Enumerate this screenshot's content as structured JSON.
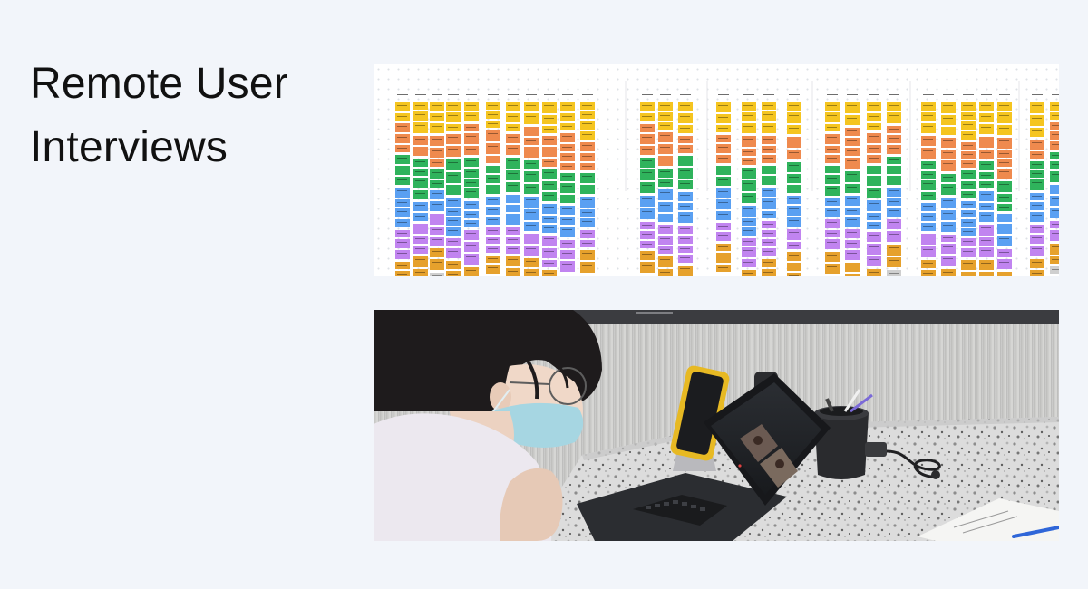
{
  "slide": {
    "title": "Remote User Interviews"
  },
  "affinity_board": {
    "icon": "affinity-map-image",
    "note_colors": [
      "#f5c520",
      "#ef8a4e",
      "#2fb35c",
      "#5aa0f2",
      "#c184f0",
      "#e6a12c",
      "#cfcfcf"
    ]
  },
  "interview_photo": {
    "icon": "remote-interview-photo"
  }
}
